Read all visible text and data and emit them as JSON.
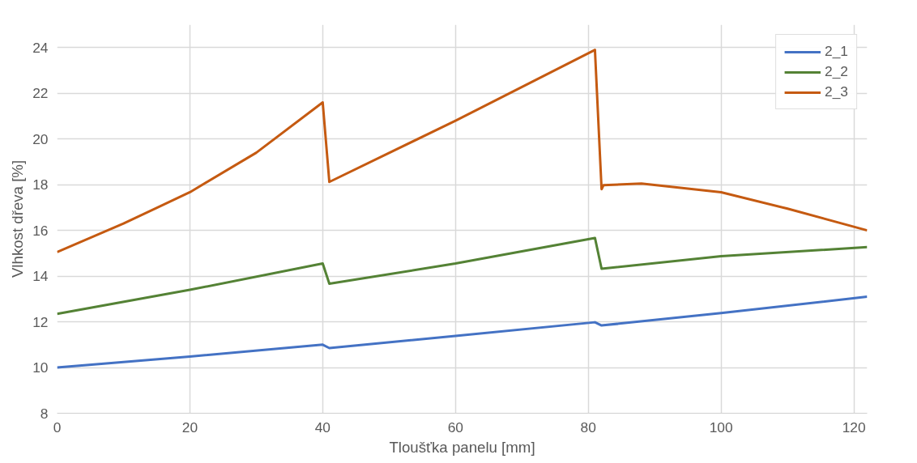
{
  "chart_data": {
    "type": "line",
    "xlabel": "Tloušťka panelu [mm]",
    "ylabel": "Vlhkost dřeva [%]",
    "xlim": [
      0,
      122
    ],
    "xticks": [
      0,
      20,
      40,
      60,
      80,
      100,
      120
    ],
    "ylim": [
      8,
      25
    ],
    "yticks": [
      8,
      10,
      12,
      14,
      16,
      18,
      20,
      22,
      24
    ],
    "grid": true,
    "legend": "top right",
    "marker": "none",
    "line_style": "solid",
    "series": [
      {
        "name": "2_1",
        "color": "#4472c4",
        "x": [
          0,
          20,
          40,
          41,
          60,
          81,
          82,
          100,
          122
        ],
        "values": [
          10.0,
          10.48,
          11.0,
          10.85,
          11.38,
          11.98,
          11.84,
          12.38,
          13.1
        ]
      },
      {
        "name": "2_2",
        "color": "#548235",
        "x": [
          0,
          20,
          40,
          41,
          60,
          81,
          82,
          100,
          122
        ],
        "values": [
          12.35,
          13.4,
          14.55,
          13.67,
          14.55,
          15.67,
          14.32,
          14.87,
          15.27
        ]
      },
      {
        "name": "2_3",
        "color": "#c55a11",
        "x": [
          0,
          10,
          20,
          30,
          40,
          41,
          60,
          81,
          82,
          82.3,
          88,
          100,
          110,
          122
        ],
        "values": [
          15.05,
          16.3,
          17.67,
          19.4,
          21.6,
          18.12,
          20.8,
          23.9,
          17.8,
          17.98,
          18.05,
          17.67,
          16.95,
          16.0
        ]
      }
    ]
  }
}
